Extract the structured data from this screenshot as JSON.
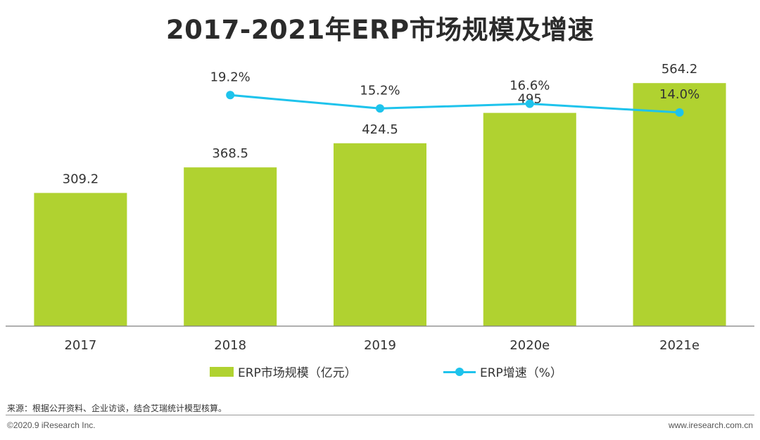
{
  "chart_data": {
    "type": "bar+line",
    "title": "2017-2021年ERP市场规模及增速",
    "categories": [
      "2017",
      "2018",
      "2019",
      "2020e",
      "2021e"
    ],
    "series": [
      {
        "name": "ERP市场规模（亿元）",
        "type": "bar",
        "axis": "left",
        "values": [
          309.2,
          368.5,
          424.5,
          495,
          564.2
        ],
        "labels": [
          "309.2",
          "368.5",
          "424.5",
          "495",
          "564.2"
        ]
      },
      {
        "name": "ERP增速（%）",
        "type": "line",
        "axis": "right",
        "values": [
          null,
          19.2,
          15.2,
          16.6,
          14.0
        ],
        "labels": [
          "",
          "19.2%",
          "15.2%",
          "16.6%",
          "14.0%"
        ]
      }
    ],
    "ylim_bar": [
      0,
      620
    ],
    "ylim_line": [
      -50,
      30
    ],
    "grid": false,
    "legend_position": "bottom"
  },
  "colors": {
    "bar": "#b0d230",
    "line": "#1ec3ec",
    "axis": "#7f7f7f",
    "label": "#333333"
  },
  "footer": {
    "source": "来源：根据公开资料、企业访谈，结合艾瑞统计模型核算。",
    "copyright": "©2020.9 iResearch Inc.",
    "website": "www.iresearch.com.cn"
  }
}
